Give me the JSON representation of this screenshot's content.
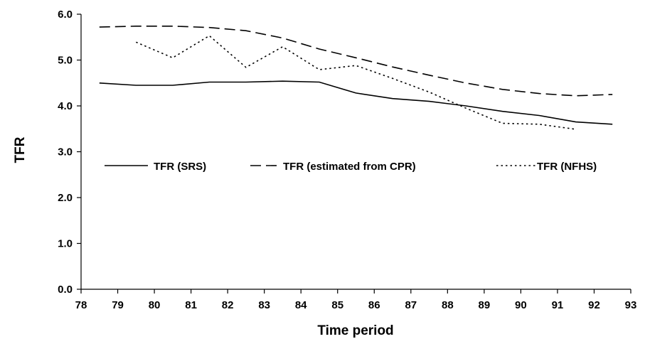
{
  "chart_data": {
    "type": "line",
    "title": "",
    "xlabel": "Time period",
    "ylabel": "TFR",
    "xlim": [
      78,
      93
    ],
    "ylim": [
      0,
      6
    ],
    "x_ticks": [
      "78",
      "79",
      "80",
      "81",
      "82",
      "83",
      "84",
      "85",
      "86",
      "87",
      "88",
      "89",
      "90",
      "91",
      "92",
      "93"
    ],
    "y_ticks": [
      "0.0",
      "1.0",
      "2.0",
      "3.0",
      "4.0",
      "5.0",
      "6.0"
    ],
    "grid": false,
    "legend_position": "middle-left, horizontal",
    "series": [
      {
        "name": "TFR (SRS)",
        "dash": "solid",
        "x": [
          78.5,
          79.5,
          80.5,
          81.5,
          82.5,
          83.5,
          84.5,
          85.5,
          86.5,
          87.5,
          88.5,
          89.5,
          90.5,
          91.5,
          92.5
        ],
        "y": [
          4.5,
          4.45,
          4.45,
          4.52,
          4.52,
          4.54,
          4.52,
          4.28,
          4.16,
          4.1,
          4.0,
          3.88,
          3.79,
          3.65,
          3.6
        ]
      },
      {
        "name": "TFR (estimated from CPR)",
        "dash": "dashed",
        "x": [
          78.5,
          79.5,
          80.5,
          81.5,
          82.5,
          83.5,
          84.5,
          85.5,
          86.5,
          87.5,
          88.5,
          89.5,
          90.5,
          91.5,
          92.5
        ],
        "y": [
          5.72,
          5.74,
          5.74,
          5.71,
          5.64,
          5.48,
          5.24,
          5.05,
          4.85,
          4.67,
          4.5,
          4.36,
          4.27,
          4.22,
          4.25
        ]
      },
      {
        "name": "TFR (NFHS)",
        "dash": "dotted",
        "x": [
          79.5,
          80.5,
          81.5,
          82.5,
          83.5,
          84.5,
          85.5,
          86.5,
          87.5,
          88.5,
          89.5,
          90.5,
          91.5
        ],
        "y": [
          5.39,
          5.05,
          5.53,
          4.84,
          5.29,
          4.79,
          4.88,
          4.6,
          4.3,
          3.95,
          3.62,
          3.6,
          3.49
        ]
      }
    ]
  }
}
